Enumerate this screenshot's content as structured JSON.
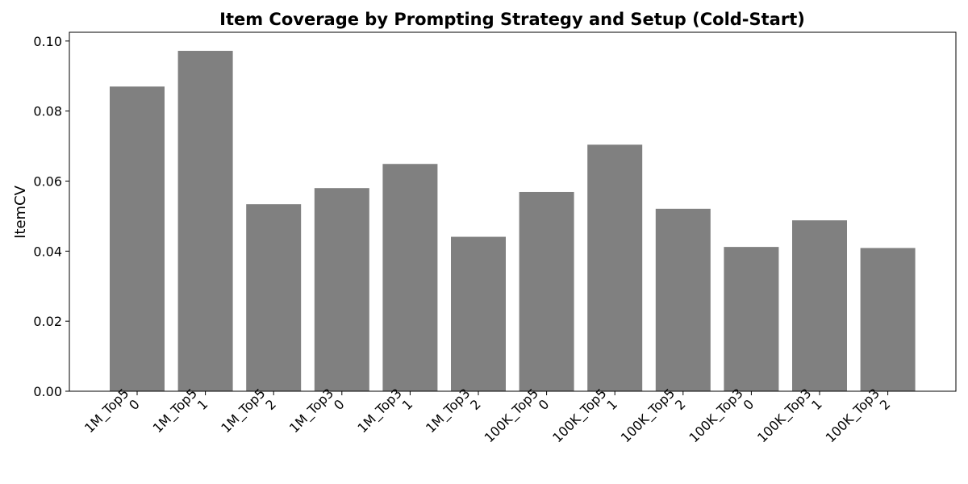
{
  "chart_data": {
    "type": "bar",
    "title": "Item Coverage by Prompting Strategy and Setup (Cold-Start)",
    "xlabel": "",
    "ylabel": "ItemCV",
    "ylim": [
      0,
      0.1025
    ],
    "yticks": [
      "0.00",
      "0.02",
      "0.04",
      "0.06",
      "0.08",
      "0.10"
    ],
    "grid": false,
    "legend": "none",
    "bar_color": "#808080",
    "categories": [
      [
        "1M_Top5",
        "0"
      ],
      [
        "1M_Top5",
        "1"
      ],
      [
        "1M_Top5",
        "2"
      ],
      [
        "1M_Top3",
        "0"
      ],
      [
        "1M_Top3",
        "1"
      ],
      [
        "1M_Top3",
        "2"
      ],
      [
        "100K_Top5",
        "0"
      ],
      [
        "100K_Top5",
        "1"
      ],
      [
        "100K_Top5",
        "2"
      ],
      [
        "100K_Top3",
        "0"
      ],
      [
        "100K_Top3",
        "1"
      ],
      [
        "100K_Top3",
        "2"
      ]
    ],
    "values": [
      0.087,
      0.0972,
      0.0534,
      0.058,
      0.0649,
      0.0441,
      0.0569,
      0.0704,
      0.0521,
      0.0412,
      0.0488,
      0.0409
    ]
  }
}
